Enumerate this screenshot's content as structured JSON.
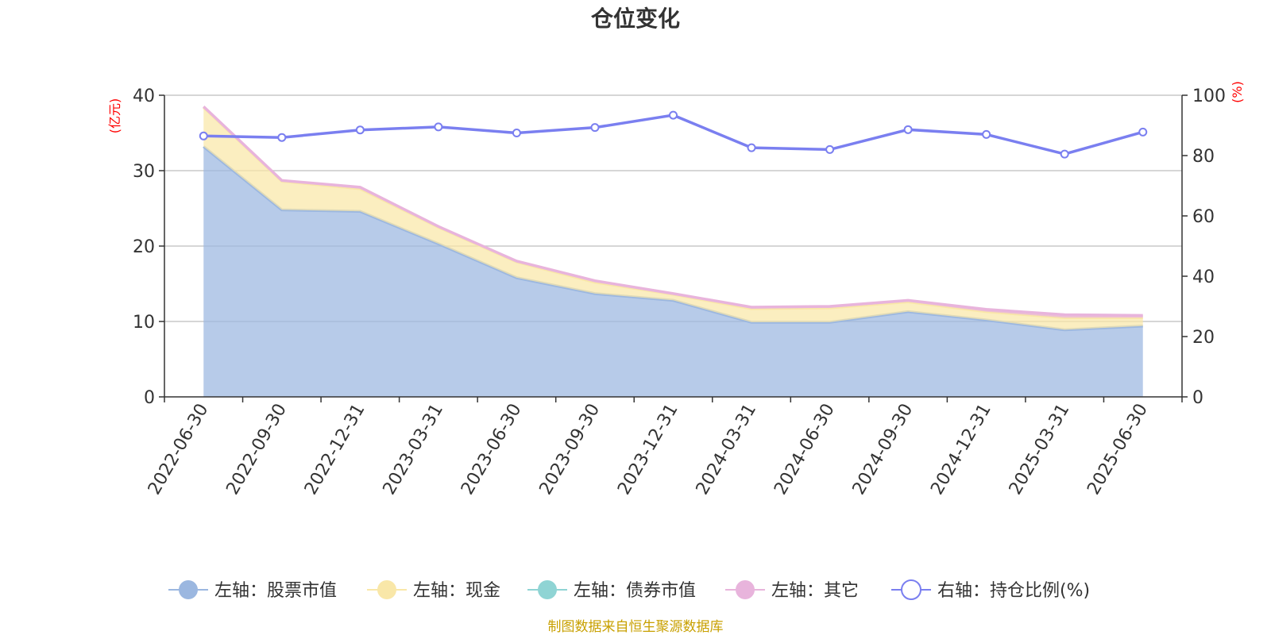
{
  "chart_data": {
    "type": "area",
    "title": "仓位变化",
    "left_unit": "(亿元)",
    "right_unit": "(%)",
    "categories": [
      "2022-06-30",
      "2022-09-30",
      "2022-12-31",
      "2023-03-31",
      "2023-06-30",
      "2023-09-30",
      "2023-12-31",
      "2024-03-31",
      "2024-06-30",
      "2024-09-30",
      "2024-12-31",
      "2025-03-31",
      "2025-06-30"
    ],
    "left_axis": {
      "min": 0,
      "max": 40,
      "ticks": [
        "0",
        "10",
        "20",
        "30",
        "40"
      ]
    },
    "right_axis": {
      "min": 0,
      "max": 100,
      "ticks": [
        "0",
        "20",
        "40",
        "60",
        "80",
        "100"
      ]
    },
    "grid": true,
    "legend_position": "bottom",
    "series": [
      {
        "name": "左轴：股票市值",
        "axis": "left",
        "type": "stacked-area",
        "color": "#9bb7e0",
        "values": [
          33.2,
          24.8,
          24.6,
          20.3,
          15.8,
          13.7,
          12.8,
          9.9,
          9.9,
          11.3,
          10.2,
          8.9,
          9.4
        ]
      },
      {
        "name": "左轴：现金",
        "axis": "left",
        "type": "stacked-area",
        "color": "#f9e7a8",
        "values": [
          5.2,
          3.8,
          3.0,
          2.2,
          2.1,
          1.5,
          0.8,
          1.8,
          1.9,
          1.3,
          1.1,
          1.6,
          1.1
        ]
      },
      {
        "name": "左轴：债券市值",
        "axis": "left",
        "type": "stacked-area",
        "color": "#8fd4d4",
        "values": [
          0,
          0,
          0,
          0,
          0,
          0,
          0,
          0,
          0,
          0,
          0,
          0,
          0
        ]
      },
      {
        "name": "左轴：其它",
        "axis": "left",
        "type": "stacked-area",
        "color": "#e8b4dc",
        "values": [
          0.1,
          0.1,
          0.2,
          0.1,
          0.1,
          0.2,
          0.1,
          0.2,
          0.2,
          0.2,
          0.3,
          0.4,
          0.3
        ]
      },
      {
        "name": "右轴：持仓比例(%)",
        "axis": "right",
        "type": "line",
        "color": "#7a7ff0",
        "values": [
          86.5,
          86.0,
          88.5,
          89.5,
          87.5,
          89.3,
          93.4,
          82.6,
          82.0,
          88.6,
          87.0,
          80.5,
          87.8
        ]
      }
    ],
    "source": "制图数据来自恒生聚源数据库"
  }
}
